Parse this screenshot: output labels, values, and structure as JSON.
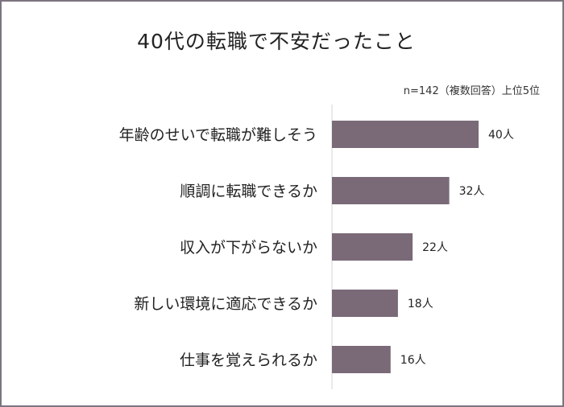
{
  "chart_data": {
    "type": "bar",
    "orientation": "horizontal",
    "title": "40代の転職で不安だったこと",
    "note": "n=142（複数回答）上位5位",
    "categories": [
      "年齢のせいで転職が難しそう",
      "順調に転職できるか",
      "収入が下がらないか",
      "新しい環境に適応できるか",
      "仕事を覚えられるか"
    ],
    "values": [
      40,
      32,
      22,
      18,
      16
    ],
    "data_labels": [
      "40人",
      "32人",
      "22人",
      "18人",
      "16人"
    ],
    "xlim": [
      0,
      50
    ],
    "bar_color": "#7a6a78",
    "grid": false,
    "legend": "none"
  }
}
